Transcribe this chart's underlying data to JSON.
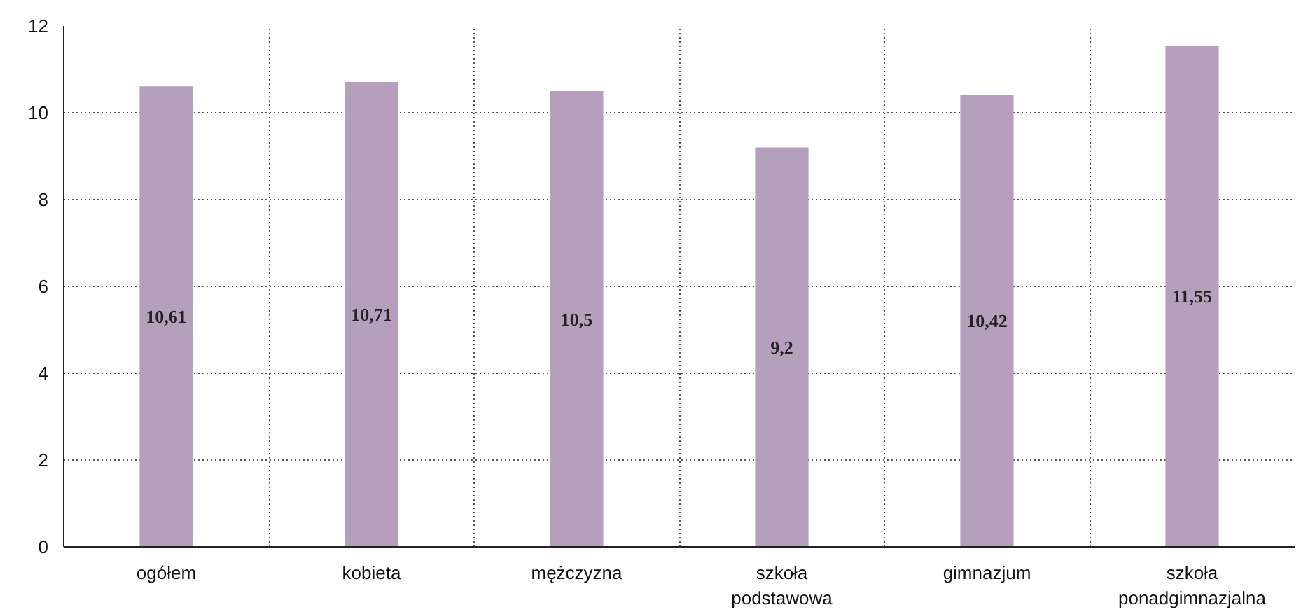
{
  "chart_data": {
    "type": "bar",
    "categories": [
      "ogółem",
      "kobieta",
      "mężczyzna",
      "szkoła podstawowa",
      "gimnazjum",
      "szkoła ponadgimnazjalna"
    ],
    "values": [
      10.61,
      10.71,
      10.5,
      9.2,
      10.42,
      11.55
    ],
    "value_labels": [
      "10,61",
      "10,71",
      "10,5",
      "9,2",
      "10,42",
      "11,55"
    ],
    "color": "#b59fbd",
    "ylim": [
      0,
      12
    ],
    "yticks": [
      0,
      2,
      4,
      6,
      8,
      10,
      12
    ],
    "grid": true
  }
}
